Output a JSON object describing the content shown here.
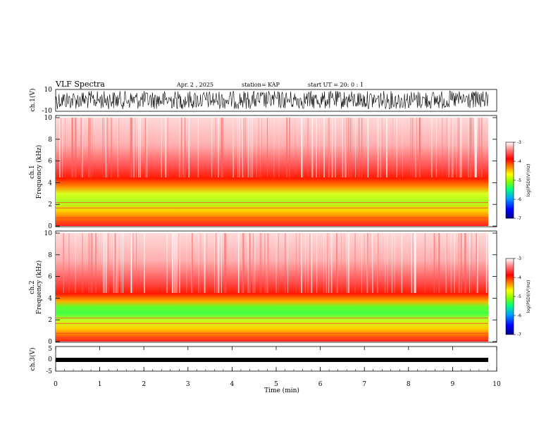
{
  "header": {
    "title": "VLF Spectra",
    "date": "Apr. 2 , 2025",
    "station": "station= KAP",
    "start": "start UT =  20: 0 : 1"
  },
  "chart_data": [
    {
      "type": "line",
      "name": "ch1-waveform",
      "ylabel": "ch.1(V)",
      "ylim": [
        -10,
        10
      ],
      "ytick_labels": [
        "10",
        "-10"
      ],
      "xlim": [
        0,
        10
      ]
    },
    {
      "type": "heatmap",
      "name": "ch1-spectrogram",
      "ylabel": "ch.1\nFrequency (kHz)",
      "ylim": [
        0,
        10
      ],
      "yticks": [
        0,
        2,
        4,
        6,
        8,
        10
      ],
      "xlim": [
        0,
        9.8
      ],
      "colorbar": {
        "label": "log(PSD)(V²/Hz)",
        "min": -7,
        "max": -3,
        "ticks": [
          -3,
          -4,
          -5,
          -6,
          -7
        ]
      }
    },
    {
      "type": "heatmap",
      "name": "ch2-spectrogram",
      "ylabel": "ch.2\nFrequency (kHz)",
      "ylim": [
        0,
        10
      ],
      "yticks": [
        0,
        2,
        4,
        6,
        8,
        10
      ],
      "xlim": [
        0,
        9.8
      ],
      "colorbar": {
        "label": "log(PSD)(V²/Hz)",
        "min": -7,
        "max": -3,
        "ticks": [
          -3,
          -4,
          -5,
          -6,
          -7
        ]
      }
    },
    {
      "type": "line",
      "name": "ch3-waveform",
      "ylabel": "ch.3(V)",
      "ylim": [
        -5,
        5
      ],
      "ytick_labels": [
        "5",
        "0",
        "-5"
      ],
      "xlim": [
        0,
        10
      ],
      "xlabel": "Time (min)",
      "xticks": [
        0,
        1,
        2,
        3,
        4,
        5,
        6,
        7,
        8,
        9,
        10
      ]
    }
  ],
  "colors": {
    "waveform": "#000000",
    "cmap": [
      "#00008f",
      "#0000ff",
      "#00a0ff",
      "#00ffa0",
      "#40ff00",
      "#c0ff00",
      "#ffe000",
      "#ff8000",
      "#ff0000",
      "#ff8080",
      "#ffffff"
    ]
  }
}
